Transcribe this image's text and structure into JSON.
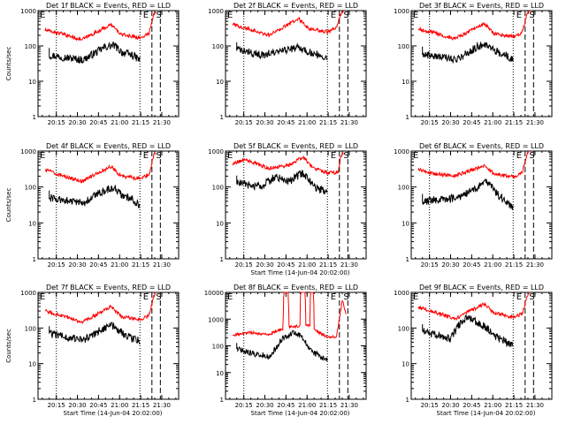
{
  "figure": {
    "y_tick_labels": [
      "1",
      "10",
      "100",
      "1000"
    ],
    "y_tick_labels_wide": [
      "1",
      "10",
      "100",
      "1000",
      "10000"
    ],
    "x_tick_labels": [
      "20:15",
      "20:30",
      "20:45",
      "21:00",
      "21:15",
      "21:30"
    ],
    "marker_e": "E",
    "marker_s": "S",
    "colors": {
      "events": "#000000",
      "lld": "#ff0000",
      "axis": "#000000"
    }
  },
  "chart_data": [
    {
      "type": "line",
      "panel": 1,
      "title": "Det 1f BLACK = Events, RED = LLD",
      "xlabel": "",
      "ylabel": "Counts/sec",
      "yscale": "log",
      "ylim": [
        1,
        1000
      ],
      "y_ticks": [
        1,
        10,
        100,
        1000
      ],
      "xlim_min": [
        5,
        40
      ],
      "x_ticks": [
        13,
        28,
        43,
        58,
        73,
        88
      ],
      "vlines": {
        "dotted": [
          13,
          72.5
        ],
        "dashed": [
          81,
          87
        ]
      },
      "series": [
        {
          "color": "events",
          "kind": "events",
          "x_min": [
            8,
            32,
            47,
            54,
            60,
            67,
            72.5
          ],
          "y": [
            55,
            40,
            90,
            105,
            65,
            55,
            40
          ]
        },
        {
          "color": "lld",
          "kind": "lld",
          "x_min": [
            5,
            17,
            31,
            52,
            59,
            73,
            79,
            82,
            84
          ],
          "y": [
            280,
            220,
            150,
            400,
            210,
            170,
            230,
            700,
            1000
          ]
        }
      ]
    },
    {
      "type": "line",
      "panel": 2,
      "title": "Det 2f BLACK = Events, RED = LLD",
      "xlabel": "",
      "ylabel": "",
      "yscale": "log",
      "ylim": [
        1,
        1000
      ],
      "y_ticks": [
        1,
        10,
        100,
        1000
      ],
      "xlim_min": [
        5,
        40
      ],
      "x_ticks": [
        13,
        28,
        43,
        58,
        73,
        88
      ],
      "vlines": {
        "dotted": [
          13,
          72.5
        ],
        "dashed": [
          81,
          87
        ]
      },
      "series": [
        {
          "color": "events",
          "kind": "events",
          "x_min": [
            8,
            25,
            40,
            52,
            62,
            72.5
          ],
          "y": [
            80,
            55,
            70,
            90,
            60,
            50
          ]
        },
        {
          "color": "lld",
          "kind": "lld",
          "x_min": [
            5,
            17,
            31,
            52,
            59,
            73,
            79,
            82,
            84
          ],
          "y": [
            400,
            300,
            200,
            600,
            300,
            250,
            350,
            800,
            1000
          ]
        }
      ]
    },
    {
      "type": "line",
      "panel": 3,
      "title": "Det 3f BLACK = Events, RED = LLD",
      "xlabel": "",
      "ylabel": "",
      "yscale": "log",
      "ylim": [
        1,
        1000
      ],
      "y_ticks": [
        1,
        10,
        100,
        1000
      ],
      "xlim_min": [
        5,
        40
      ],
      "x_ticks": [
        13,
        28,
        43,
        58,
        73,
        88
      ],
      "vlines": {
        "dotted": [
          13,
          72.5
        ],
        "dashed": [
          81,
          87
        ]
      },
      "series": [
        {
          "color": "events",
          "kind": "events",
          "x_min": [
            8,
            32,
            47,
            54,
            60,
            67,
            72.5
          ],
          "y": [
            60,
            40,
            95,
            110,
            70,
            55,
            40
          ]
        },
        {
          "color": "lld",
          "kind": "lld",
          "x_min": [
            5,
            17,
            31,
            52,
            59,
            73,
            79,
            82,
            84
          ],
          "y": [
            300,
            230,
            160,
            420,
            220,
            180,
            240,
            750,
            1000
          ]
        }
      ]
    },
    {
      "type": "line",
      "panel": 4,
      "title": "Det 4f BLACK = Events, RED = LLD",
      "xlabel": "",
      "ylabel": "Counts/sec",
      "yscale": "log",
      "ylim": [
        1,
        1000
      ],
      "y_ticks": [
        1,
        10,
        100,
        1000
      ],
      "xlim_min": [
        5,
        40
      ],
      "x_ticks": [
        13,
        28,
        43,
        58,
        73,
        88
      ],
      "vlines": {
        "dotted": [
          13,
          72.5
        ],
        "dashed": [
          81,
          87
        ]
      },
      "series": [
        {
          "color": "events",
          "kind": "events",
          "x_min": [
            8,
            32,
            47,
            54,
            60,
            67,
            72.5
          ],
          "y": [
            50,
            35,
            80,
            95,
            60,
            45,
            30
          ]
        },
        {
          "color": "lld",
          "kind": "lld",
          "x_min": [
            5,
            17,
            31,
            52,
            59,
            73,
            79,
            82,
            84
          ],
          "y": [
            300,
            210,
            140,
            380,
            200,
            170,
            220,
            700,
            1000
          ]
        }
      ]
    },
    {
      "type": "line",
      "panel": 5,
      "title": "Det 5f BLACK = Events, RED = LLD",
      "xlabel": "Start Time (14-Jun-04 20:02:00)",
      "ylabel": "",
      "yscale": "log",
      "ylim": [
        1,
        1000
      ],
      "y_ticks": [
        1,
        10,
        100,
        1000
      ],
      "xlim_min": [
        5,
        40
      ],
      "x_ticks": [
        13,
        28,
        43,
        58,
        73,
        88
      ],
      "vlines": {
        "dotted": [
          13,
          72.5
        ],
        "dashed": [
          81,
          87
        ]
      },
      "series": [
        {
          "color": "events",
          "kind": "events",
          "x_min": [
            8,
            25,
            36,
            45,
            55,
            65,
            72.5
          ],
          "y": [
            130,
            100,
            200,
            140,
            250,
            90,
            70
          ]
        },
        {
          "color": "lld",
          "kind": "lld",
          "x_min": [
            5,
            14,
            30,
            45,
            55,
            62,
            73,
            80,
            82,
            84
          ],
          "y": [
            450,
            600,
            330,
            400,
            700,
            350,
            240,
            260,
            700,
            1000
          ]
        }
      ]
    },
    {
      "type": "line",
      "panel": 6,
      "title": "Det 6f BLACK = Events, RED = LLD",
      "xlabel": "",
      "ylabel": "",
      "yscale": "log",
      "ylim": [
        1,
        1000
      ],
      "y_ticks": [
        1,
        10,
        100,
        1000
      ],
      "xlim_min": [
        5,
        40
      ],
      "x_ticks": [
        13,
        28,
        43,
        58,
        73,
        88
      ],
      "vlines": {
        "dotted": [
          13,
          72.5
        ],
        "dashed": [
          81,
          87
        ]
      },
      "series": [
        {
          "color": "events",
          "kind": "events",
          "x_min": [
            8,
            32,
            42,
            47,
            54,
            60,
            67,
            72.5
          ],
          "y": [
            40,
            50,
            70,
            100,
            140,
            70,
            40,
            25
          ]
        },
        {
          "color": "lld",
          "kind": "lld",
          "x_min": [
            5,
            17,
            31,
            52,
            59,
            73,
            79,
            82,
            84
          ],
          "y": [
            300,
            230,
            200,
            400,
            230,
            190,
            260,
            750,
            1000
          ]
        }
      ]
    },
    {
      "type": "line",
      "panel": 7,
      "title": "Det 7f BLACK = Events, RED = LLD",
      "xlabel": "Start Time (14-Jun-04 20:02:00)",
      "ylabel": "Counts/sec",
      "yscale": "log",
      "ylim": [
        1,
        1000
      ],
      "y_ticks": [
        1,
        10,
        100,
        1000
      ],
      "xlim_min": [
        5,
        40
      ],
      "x_ticks": [
        13,
        28,
        43,
        58,
        73,
        88
      ],
      "vlines": {
        "dotted": [
          13,
          72.5
        ],
        "dashed": [
          81,
          87
        ]
      },
      "series": [
        {
          "color": "events",
          "kind": "events",
          "x_min": [
            8,
            32,
            47,
            54,
            60,
            67,
            72.5
          ],
          "y": [
            70,
            45,
            100,
            120,
            70,
            50,
            45
          ]
        },
        {
          "color": "lld",
          "kind": "lld",
          "x_min": [
            5,
            17,
            31,
            52,
            59,
            73,
            79,
            82,
            84
          ],
          "y": [
            300,
            220,
            140,
            400,
            210,
            170,
            230,
            700,
            1000
          ]
        }
      ]
    },
    {
      "type": "line",
      "panel": 8,
      "title": "Det 8f BLACK = Events, RED = LLD",
      "xlabel": "Start Time (14-Jun-04 20:02:00)",
      "ylabel": "",
      "yscale": "log",
      "ylim": [
        1,
        10000
      ],
      "y_ticks": [
        1,
        10,
        100,
        1000,
        10000
      ],
      "xlim_min": [
        5,
        40
      ],
      "x_ticks": [
        13,
        28,
        43,
        58,
        73,
        88
      ],
      "vlines": {
        "dotted": [
          13,
          72.5
        ],
        "dashed": [
          81,
          87
        ]
      },
      "series": [
        {
          "color": "events",
          "kind": "events",
          "x_min": [
            8,
            20,
            32,
            40,
            47,
            54,
            60,
            67,
            72.5
          ],
          "y": [
            80,
            50,
            40,
            180,
            300,
            250,
            70,
            40,
            30
          ]
        },
        {
          "color": "lld",
          "kind": "lld",
          "spikes": [
            [
              41,
              45
            ],
            [
              53,
              57
            ],
            [
              60,
              63
            ]
          ],
          "x_min": [
            5,
            17,
            31,
            38,
            45,
            52,
            59,
            65,
            73,
            79,
            83,
            86
          ],
          "y": [
            250,
            320,
            260,
            400,
            500,
            550,
            600,
            350,
            200,
            230,
            5000,
            1500
          ]
        }
      ]
    },
    {
      "type": "line",
      "panel": 9,
      "title": "Det 9f BLACK = Events, RED = LLD",
      "xlabel": "Start Time (14-Jun-04 20:02:00)",
      "ylabel": "",
      "yscale": "log",
      "ylim": [
        1,
        1000
      ],
      "y_ticks": [
        1,
        10,
        100,
        1000
      ],
      "xlim_min": [
        5,
        40
      ],
      "x_ticks": [
        13,
        28,
        43,
        58,
        73,
        88
      ],
      "vlines": {
        "dotted": [
          13,
          72.5
        ],
        "dashed": [
          81,
          87
        ]
      },
      "series": [
        {
          "color": "events",
          "kind": "events",
          "x_min": [
            8,
            28,
            33,
            40,
            47,
            54,
            60,
            67,
            72.5
          ],
          "y": [
            80,
            50,
            110,
            220,
            140,
            100,
            60,
            40,
            30
          ]
        },
        {
          "color": "lld",
          "kind": "lld",
          "x_min": [
            5,
            17,
            31,
            52,
            59,
            73,
            79,
            82,
            84
          ],
          "y": [
            380,
            280,
            180,
            480,
            260,
            200,
            250,
            700,
            1000
          ]
        }
      ]
    }
  ]
}
